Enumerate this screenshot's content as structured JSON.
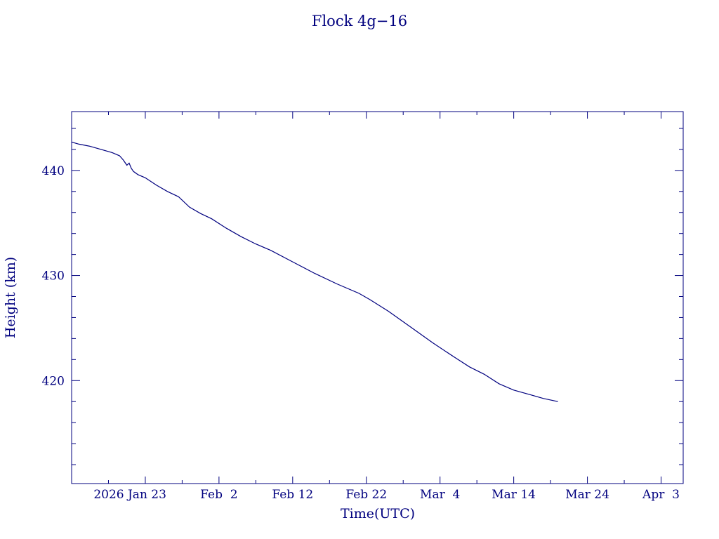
{
  "colors": {
    "ink": "#00007f",
    "background": "#ffffff"
  },
  "chart_data": {
    "type": "line",
    "title": "Flock 4g−16",
    "xlabel": "Time(UTC)",
    "ylabel": "Height (km)",
    "x_is_date": true,
    "xlim": [
      "2026-01-13",
      "2026-04-06"
    ],
    "ylim": [
      410.2,
      445.6
    ],
    "grid": false,
    "x_ticks": [
      {
        "date": "2026-01-23",
        "label": "2026 Jan 23"
      },
      {
        "date": "2026-02-02",
        "label": "Feb  2"
      },
      {
        "date": "2026-02-12",
        "label": "Feb 12"
      },
      {
        "date": "2026-02-22",
        "label": "Feb 22"
      },
      {
        "date": "2026-03-04",
        "label": "Mar  4"
      },
      {
        "date": "2026-03-14",
        "label": "Mar 14"
      },
      {
        "date": "2026-03-24",
        "label": "Mar 24"
      },
      {
        "date": "2026-04-03",
        "label": "Apr  3"
      }
    ],
    "y_ticks": [
      420,
      430,
      440
    ],
    "series": [
      {
        "x": [
          "2026-01-13T00:00",
          "2026-01-14T00:00",
          "2026-01-15T12:00",
          "2026-01-17T00:00",
          "2026-01-18T12:00",
          "2026-01-19T12:00",
          "2026-01-20T00:00",
          "2026-01-20T12:00",
          "2026-01-20T19:12",
          "2026-01-21T02:24",
          "2026-01-21T09:36",
          "2026-01-22T00:00",
          "2026-01-23T00:00",
          "2026-01-24T12:00",
          "2026-01-26T00:00",
          "2026-01-27T12:00",
          "2026-01-29T00:00",
          "2026-01-30T12:00",
          "2026-02-01T00:00",
          "2026-02-03T00:00",
          "2026-02-05T00:00",
          "2026-02-07T00:00",
          "2026-02-09T00:00",
          "2026-02-12T00:00",
          "2026-02-15T00:00",
          "2026-02-18T00:00",
          "2026-02-21T00:00",
          "2026-02-22T12:00",
          "2026-02-25T00:00",
          "2026-02-28T00:00",
          "2026-03-03T00:00",
          "2026-03-06T00:00",
          "2026-03-08T00:00",
          "2026-03-10T00:00",
          "2026-03-12T00:00",
          "2026-03-14T00:00",
          "2026-03-16T00:00",
          "2026-03-18T00:00",
          "2026-03-20T00:00"
        ],
        "values": [
          442.7,
          442.5,
          442.3,
          442.0,
          441.7,
          441.4,
          441.0,
          440.5,
          440.7,
          440.2,
          439.9,
          439.6,
          439.3,
          438.6,
          438.0,
          437.5,
          436.5,
          435.9,
          435.4,
          434.5,
          433.7,
          433.0,
          432.4,
          431.3,
          430.2,
          429.2,
          428.3,
          427.7,
          426.6,
          425.1,
          423.6,
          422.2,
          421.3,
          420.6,
          419.7,
          419.1,
          418.7,
          418.3,
          418.0
        ]
      }
    ]
  }
}
